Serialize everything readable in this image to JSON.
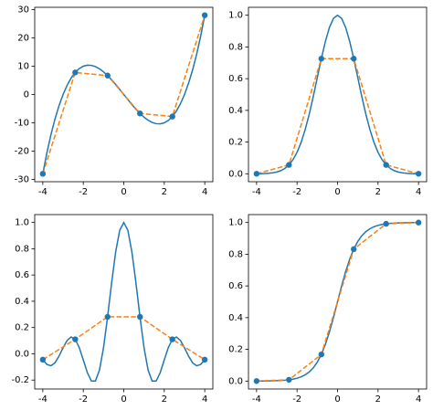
{
  "chart_data": [
    {
      "type": "line",
      "xlim": [
        -4.4,
        4.4
      ],
      "xticks": [
        -4,
        -2,
        0,
        2,
        4
      ],
      "ylim": [
        -30.8,
        30.8
      ],
      "yticks": [
        -30,
        -20,
        -10,
        0,
        10,
        20,
        30
      ],
      "series": [
        {
          "color": "#1f77b4",
          "style": "solid",
          "x": [
            -4,
            -3.8,
            -3.6,
            -3.4,
            -3.2,
            -3,
            -2.8,
            -2.6,
            -2.4,
            -2.2,
            -2,
            -1.8,
            -1.6,
            -1.4,
            -1.2,
            -1,
            -0.8,
            -0.6,
            -0.4,
            -0.2,
            0,
            0.2,
            0.4,
            0.6,
            0.8,
            1,
            1.2,
            1.4,
            1.6,
            1.8,
            2,
            2.2,
            2.4,
            2.6,
            2.8,
            3,
            3.2,
            3.4,
            3.6,
            3.8,
            4
          ],
          "values": [
            -28,
            -20.67,
            -14.26,
            -8.7,
            -3.97,
            0,
            3.25,
            5.82,
            7.78,
            9.15,
            10,
            10.37,
            10.3,
            9.86,
            9.07,
            8,
            6.69,
            5.18,
            3.54,
            1.79,
            0,
            -1.79,
            -3.54,
            -5.18,
            -6.69,
            -8,
            -9.07,
            -9.86,
            -10.3,
            -10.37,
            -10,
            -9.15,
            -7.78,
            -5.82,
            -3.25,
            0,
            3.97,
            8.7,
            14.26,
            20.67,
            28
          ]
        },
        {
          "color": "#ff7f0e",
          "style": "dashed",
          "marker_color": "#1f77b4",
          "x": [
            -4,
            -2.4,
            -0.8,
            0.8,
            2.4,
            4
          ],
          "values": [
            -28,
            7.78,
            6.69,
            -6.69,
            -7.78,
            28
          ]
        }
      ]
    },
    {
      "type": "line",
      "xlim": [
        -4.4,
        4.4
      ],
      "xticks": [
        -4,
        -2,
        0,
        2,
        4
      ],
      "ylim": [
        -0.05,
        1.05
      ],
      "yticks": [
        {
          "value": 0,
          "label": "0.0"
        },
        0.2,
        0.4,
        0.6,
        0.8,
        {
          "value": 1,
          "label": "1.0"
        }
      ],
      "series": [
        {
          "color": "#1f77b4",
          "style": "solid",
          "x": [
            -4,
            -3.8,
            -3.6,
            -3.4,
            -3.2,
            -3,
            -2.8,
            -2.6,
            -2.4,
            -2.2,
            -2,
            -1.8,
            -1.6,
            -1.4,
            -1.2,
            -1,
            -0.8,
            -0.6,
            -0.4,
            -0.2,
            0,
            0.2,
            0.4,
            0.6,
            0.8,
            1,
            1.2,
            1.4,
            1.6,
            1.8,
            2,
            2.2,
            2.4,
            2.6,
            2.8,
            3,
            3.2,
            3.4,
            3.6,
            3.8,
            4
          ],
          "values": [
            0.0003,
            0.0007,
            0.0015,
            0.0031,
            0.006,
            0.0111,
            0.0198,
            0.034,
            0.0561,
            0.0889,
            0.1353,
            0.1979,
            0.278,
            0.3753,
            0.4868,
            0.6065,
            0.7261,
            0.8353,
            0.9231,
            0.9802,
            1,
            0.9802,
            0.9231,
            0.8353,
            0.7261,
            0.6065,
            0.4868,
            0.3753,
            0.278,
            0.1979,
            0.1353,
            0.0889,
            0.0561,
            0.034,
            0.0198,
            0.0111,
            0.006,
            0.0031,
            0.0015,
            0.0007,
            0.0003
          ]
        },
        {
          "color": "#ff7f0e",
          "style": "dashed",
          "marker_color": "#1f77b4",
          "x": [
            -4,
            -2.4,
            -0.8,
            0.8,
            2.4,
            4
          ],
          "values": [
            0.0003,
            0.0561,
            0.7261,
            0.7261,
            0.0561,
            0.0003
          ]
        }
      ]
    },
    {
      "type": "line",
      "xlim": [
        -4.4,
        4.4
      ],
      "xticks": [
        -4,
        -2,
        0,
        2,
        4
      ],
      "ylim": [
        -0.268,
        1.06
      ],
      "yticks": [
        -0.2,
        {
          "value": 0,
          "label": "0.0"
        },
        0.2,
        0.4,
        0.6,
        0.8,
        {
          "value": 1,
          "label": "1.0"
        }
      ],
      "series": [
        {
          "color": "#1f77b4",
          "style": "solid",
          "x": [
            -4,
            -3.8,
            -3.6,
            -3.4,
            -3.2,
            -3,
            -2.8,
            -2.6,
            -2.4,
            -2.2,
            -2,
            -1.8,
            -1.6,
            -1.4,
            -1.2,
            -1,
            -0.8,
            -0.6,
            -0.4,
            -0.2,
            0,
            0.2,
            0.4,
            0.6,
            0.8,
            1,
            1.2,
            1.4,
            1.6,
            1.8,
            2,
            2.2,
            2.4,
            2.6,
            2.8,
            3,
            3.2,
            3.4,
            3.6,
            3.8,
            4
          ],
          "values": [
            -0.0447,
            -0.0806,
            -0.0909,
            -0.0686,
            -0.0182,
            0.0458,
            0.1017,
            0.128,
            0.1102,
            0.0472,
            -0.0466,
            -0.1431,
            -0.2075,
            -0.2075,
            -0.1229,
            0.047,
            0.2814,
            0.541,
            0.7767,
            0.941,
            1,
            0.941,
            0.7767,
            0.541,
            0.2814,
            0.047,
            -0.1229,
            -0.2075,
            -0.2075,
            -0.1431,
            -0.0466,
            0.0472,
            0.1102,
            0.128,
            0.1017,
            0.0458,
            -0.0182,
            -0.0686,
            -0.0909,
            -0.0806,
            -0.0447
          ]
        },
        {
          "color": "#ff7f0e",
          "style": "dashed",
          "marker_color": "#1f77b4",
          "x": [
            -4,
            -2.4,
            -0.8,
            0.8,
            2.4,
            4
          ],
          "values": [
            -0.0447,
            0.1102,
            0.2814,
            0.2814,
            0.1102,
            -0.0447
          ]
        }
      ]
    },
    {
      "type": "line",
      "xlim": [
        -4.4,
        4.4
      ],
      "xticks": [
        -4,
        -2,
        0,
        2,
        4
      ],
      "ylim": [
        -0.05,
        1.05
      ],
      "yticks": [
        {
          "value": 0,
          "label": "0.0"
        },
        0.2,
        0.4,
        0.6,
        0.8,
        {
          "value": 1,
          "label": "1.0"
        }
      ],
      "series": [
        {
          "color": "#1f77b4",
          "style": "solid",
          "x": [
            -4,
            -3.8,
            -3.6,
            -3.4,
            -3.2,
            -3,
            -2.8,
            -2.6,
            -2.4,
            -2.2,
            -2,
            -1.8,
            -1.6,
            -1.4,
            -1.2,
            -1,
            -0.8,
            -0.6,
            -0.4,
            -0.2,
            0,
            0.2,
            0.4,
            0.6,
            0.8,
            1,
            1.2,
            1.4,
            1.6,
            1.8,
            2,
            2.2,
            2.4,
            2.6,
            2.8,
            3,
            3.2,
            3.4,
            3.6,
            3.8,
            4
          ],
          "values": [
            0.0003,
            0.0005,
            0.0007,
            0.0011,
            0.0017,
            0.0025,
            0.0037,
            0.0055,
            0.0082,
            0.0121,
            0.018,
            0.0266,
            0.0392,
            0.0573,
            0.0832,
            0.1192,
            0.168,
            0.2315,
            0.31,
            0.4013,
            0.5,
            0.5987,
            0.69,
            0.7685,
            0.832,
            0.8808,
            0.9168,
            0.9427,
            0.9608,
            0.9734,
            0.982,
            0.9879,
            0.9918,
            0.9945,
            0.9963,
            0.9975,
            0.9983,
            0.9989,
            0.9993,
            0.9995,
            0.9997
          ]
        },
        {
          "color": "#ff7f0e",
          "style": "dashed",
          "marker_color": "#1f77b4",
          "x": [
            -4,
            -2.4,
            -0.8,
            0.8,
            2.4,
            4
          ],
          "values": [
            0.0003,
            0.0082,
            0.168,
            0.832,
            0.9918,
            0.9997
          ]
        }
      ]
    }
  ]
}
